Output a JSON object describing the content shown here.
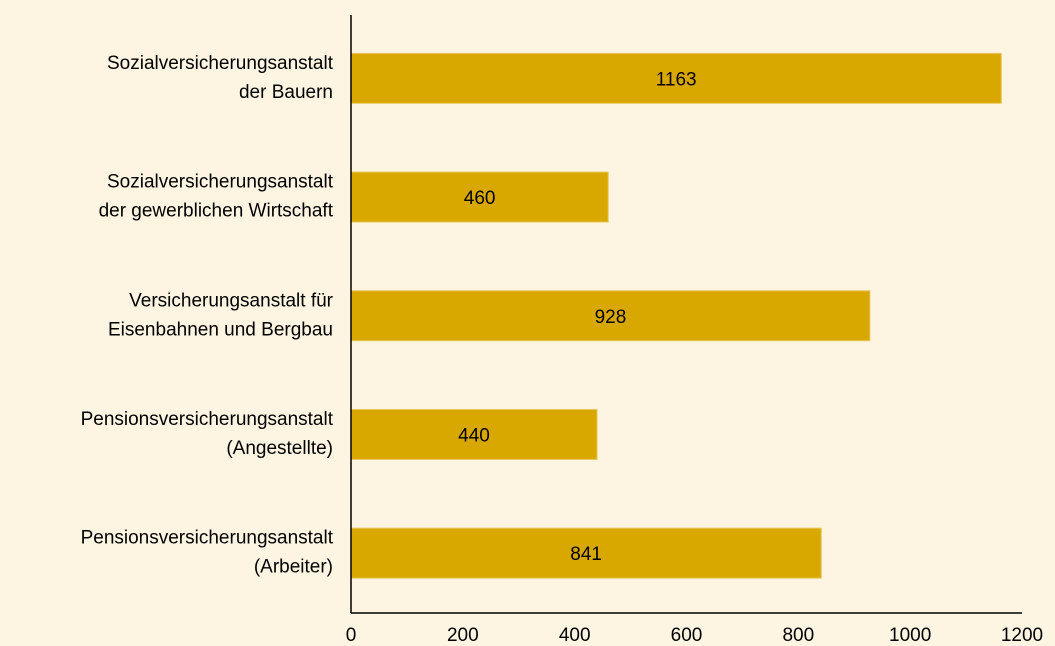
{
  "chart_data": {
    "type": "bar",
    "orientation": "horizontal",
    "categories": [
      [
        "Sozialversicherungsanstalt",
        "der Bauern"
      ],
      [
        "Sozialversicherungsanstalt",
        "der gewerblichen Wirtschaft"
      ],
      [
        "Versicherungsanstalt für",
        "Eisenbahnen und Bergbau"
      ],
      [
        "Pensionsversicherungsanstalt",
        "(Angestellte)"
      ],
      [
        "Pensionsversicherungsanstalt",
        "(Arbeiter)"
      ]
    ],
    "values": [
      1163,
      460,
      928,
      440,
      841
    ],
    "color": "#d9a800",
    "xlim": [
      0,
      1200
    ],
    "xticks": [
      0,
      200,
      400,
      600,
      800,
      1000,
      1200
    ],
    "grid": false
  }
}
